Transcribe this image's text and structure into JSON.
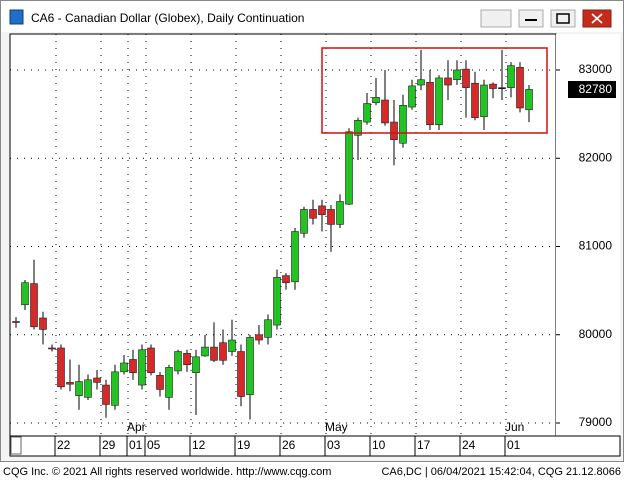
{
  "chart_data": {
    "type": "candlestick",
    "title": "CA6 - Canadian Dollar (Globex), Daily Continuation",
    "categories": [
      null,
      null,
      null,
      null,
      null,
      "22",
      null,
      null,
      null,
      null,
      "29",
      null,
      null,
      "01",
      null,
      "05",
      null,
      null,
      null,
      null,
      "12",
      null,
      null,
      null,
      null,
      "19",
      null,
      null,
      null,
      null,
      "26",
      null,
      null,
      null,
      null,
      "03",
      null,
      null,
      null,
      null,
      "10",
      null,
      null,
      null,
      null,
      "17",
      null,
      null,
      null,
      null,
      "24",
      null,
      null,
      null,
      null,
      "01",
      null,
      null
    ],
    "month_labels": [
      null,
      null,
      null,
      null,
      null,
      null,
      null,
      null,
      null,
      null,
      null,
      null,
      null,
      "Apr",
      null,
      null,
      null,
      null,
      null,
      null,
      null,
      null,
      null,
      null,
      null,
      null,
      null,
      null,
      null,
      null,
      null,
      null,
      null,
      null,
      null,
      "May",
      null,
      null,
      null,
      null,
      null,
      null,
      null,
      null,
      null,
      null,
      null,
      null,
      null,
      null,
      null,
      null,
      null,
      null,
      null,
      "Jun",
      null,
      null
    ],
    "open": [
      80150,
      80340,
      80580,
      80190,
      79850,
      79850,
      79460,
      79310,
      79290,
      79510,
      79430,
      79200,
      79580,
      79720,
      79430,
      79850,
      79540,
      79290,
      79590,
      79790,
      79570,
      79760,
      79860,
      79910,
      79810,
      79810,
      79320,
      80000,
      79970,
      80110,
      80670,
      80600,
      81150,
      81420,
      81460,
      81420,
      81250,
      81480,
      82260,
      82410,
      82630,
      82660,
      82410,
      82170,
      82580,
      82830,
      82860,
      82380,
      82910,
      82890,
      83010,
      82850,
      82470,
      82840,
      82800,
      82800,
      83030,
      82550
    ],
    "high": [
      80200,
      80620,
      80850,
      80260,
      79890,
      79890,
      79720,
      79660,
      79550,
      79600,
      79490,
      79660,
      79770,
      79830,
      79890,
      79890,
      79580,
      79660,
      79830,
      79830,
      79830,
      80000,
      80140,
      80060,
      80170,
      79890,
      80000,
      80110,
      80230,
      80740,
      80700,
      81210,
      81450,
      81530,
      81530,
      81470,
      81590,
      82340,
      82460,
      82740,
      82910,
      83000,
      82660,
      82720,
      82890,
      83230,
      83000,
      82940,
      83110,
      83110,
      83110,
      82980,
      82890,
      82860,
      83230,
      83090,
      83090,
      82830
    ],
    "low": [
      80080,
      80280,
      80060,
      79890,
      79810,
      79380,
      79360,
      79150,
      79260,
      79380,
      79060,
      79150,
      79550,
      79490,
      79380,
      79540,
      79300,
      79150,
      79550,
      79580,
      79090,
      79750,
      79690,
      79660,
      79760,
      79190,
      79040,
      79890,
      79890,
      80060,
      80510,
      80510,
      81100,
      81250,
      81170,
      80940,
      81210,
      81470,
      81980,
      82380,
      82600,
      82370,
      81920,
      82120,
      82550,
      82770,
      82320,
      82320,
      82660,
      82830,
      82460,
      82430,
      82320,
      82680,
      82660,
      82690,
      82520,
      82410
    ],
    "close": [
      80140,
      80590,
      80090,
      80060,
      79840,
      79410,
      79440,
      79470,
      79490,
      79460,
      79210,
      79580,
      79680,
      79570,
      79830,
      79570,
      79380,
      79630,
      79810,
      79660,
      79750,
      79860,
      79710,
      79710,
      79940,
      79300,
      79970,
      79940,
      80170,
      80650,
      80590,
      81170,
      81420,
      81320,
      81360,
      81250,
      81510,
      82300,
      82430,
      82620,
      82690,
      82400,
      82210,
      82600,
      82820,
      82890,
      82380,
      82910,
      82830,
      83000,
      82800,
      82460,
      82830,
      82790,
      82800,
      83050,
      82570,
      82780
    ],
    "up_color": "#22c322",
    "down_color": "#d42a2a",
    "ylim": [
      78864,
      83408
    ],
    "yticks": [
      79000,
      80000,
      81000,
      82000,
      83000
    ],
    "grid": true
  },
  "footer": {
    "left": "CQG Inc. © 2021 All rights reserved worldwide. http://www.cqg.com",
    "right": "CA6,DC | 06/04/2021 15:42:04, CQG 21.12.8066"
  }
}
